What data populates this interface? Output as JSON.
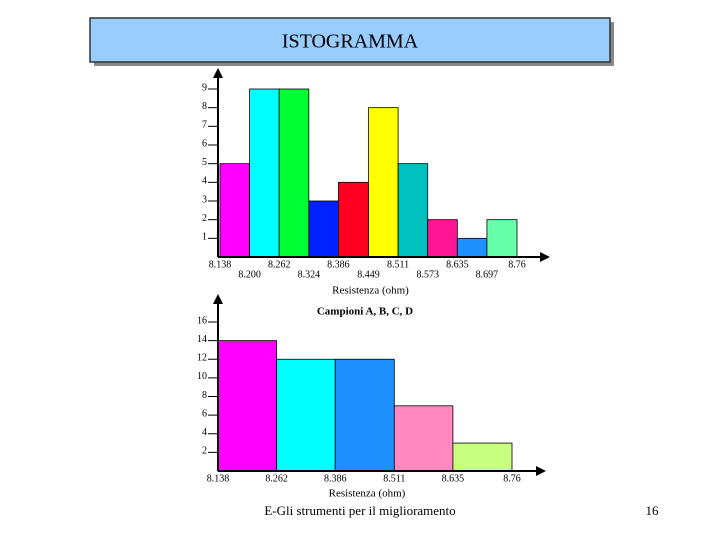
{
  "slide": {
    "title": "ISTOGRAMMA",
    "footer": "E-Gli strumenti per il miglioramento",
    "page_number": "16"
  },
  "chart_data": [
    {
      "type": "histogram",
      "xlabel": "Resistenza (ohm)",
      "bins": [
        8.138,
        {
          "value": 8.2,
          "label": "8.200"
        },
        8.262,
        8.324,
        8.386,
        8.449,
        8.511,
        8.573,
        8.635,
        8.697,
        8.76
      ],
      "values": [
        5,
        9,
        9,
        3,
        4,
        8,
        5,
        2,
        1,
        2
      ],
      "colors": [
        "#ff00ff",
        "#00ffff",
        "#00ff33",
        "#0022ff",
        "#ff0022",
        "#ffff00",
        "#00c0c0",
        "#ff1493",
        "#1e90ff",
        "#66ffaa"
      ],
      "xlim": [
        8.138,
        8.76
      ],
      "ylim": [
        0,
        9
      ],
      "yticks": [
        1,
        2,
        3,
        4,
        5,
        6,
        7,
        8,
        9
      ]
    },
    {
      "type": "histogram",
      "title": "Campioni A, B, C, D",
      "xlabel": "Resistenza (ohm)",
      "bins": [
        8.138,
        8.262,
        8.386,
        8.511,
        8.635,
        8.76
      ],
      "values": [
        14,
        12,
        12,
        7,
        3
      ],
      "colors": [
        "#ff00ff",
        "#00ffff",
        "#1e90ff",
        "#ff88c0",
        "#c8ff80"
      ],
      "xlim": [
        8.138,
        8.76
      ],
      "ylim": [
        0,
        16
      ],
      "yticks": [
        2,
        4,
        6,
        8,
        10,
        12,
        14,
        16
      ]
    }
  ]
}
